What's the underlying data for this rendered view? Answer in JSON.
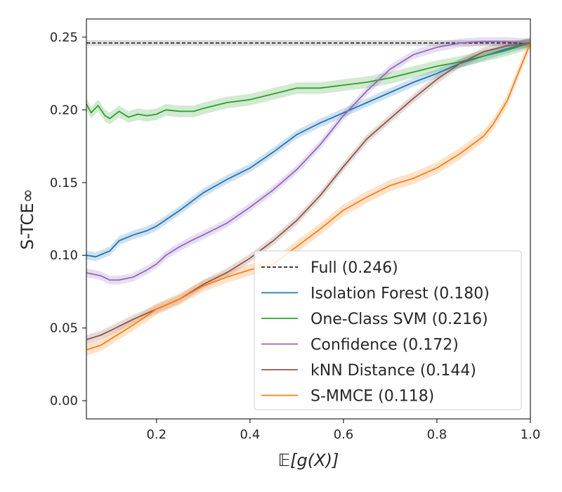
{
  "chart_data": {
    "type": "line",
    "xlabel": "𝔼[g(X)]",
    "ylabel": "S-TCE∞",
    "xlim": [
      0.05,
      1.0
    ],
    "ylim": [
      -0.0125,
      0.2625
    ],
    "xticks": [
      0.2,
      0.4,
      0.6,
      0.8,
      1.0
    ],
    "xtick_labels": [
      "0.2",
      "0.4",
      "0.6",
      "0.8",
      "1.0"
    ],
    "yticks": [
      0.0,
      0.05,
      0.1,
      0.15,
      0.2,
      0.25
    ],
    "ytick_labels": [
      "0.00",
      "0.05",
      "0.10",
      "0.15",
      "0.20",
      "0.25"
    ],
    "grid": false,
    "legend_position": "lower-right",
    "reference_line": {
      "name": "Full (0.246)",
      "value": 0.246,
      "band": [
        0.244,
        0.248
      ],
      "color": "#262626",
      "style": "dashed"
    },
    "series": [
      {
        "name": "Isolation Forest (0.180)",
        "color": "#1f77b4",
        "band_halfwidth": 0.003,
        "x": [
          0.05,
          0.07,
          0.1,
          0.12,
          0.15,
          0.18,
          0.2,
          0.25,
          0.3,
          0.35,
          0.4,
          0.45,
          0.5,
          0.55,
          0.6,
          0.65,
          0.7,
          0.75,
          0.8,
          0.85,
          0.9,
          0.95,
          1.0
        ],
        "values": [
          0.1,
          0.099,
          0.103,
          0.11,
          0.114,
          0.117,
          0.12,
          0.131,
          0.143,
          0.152,
          0.16,
          0.171,
          0.183,
          0.191,
          0.198,
          0.205,
          0.212,
          0.219,
          0.225,
          0.232,
          0.237,
          0.242,
          0.246
        ]
      },
      {
        "name": "One-Class SVM (0.216)",
        "color": "#2ca02c",
        "band_halfwidth": 0.004,
        "x": [
          0.05,
          0.06,
          0.075,
          0.09,
          0.1,
          0.12,
          0.14,
          0.16,
          0.18,
          0.2,
          0.22,
          0.25,
          0.28,
          0.3,
          0.35,
          0.4,
          0.45,
          0.5,
          0.55,
          0.6,
          0.65,
          0.7,
          0.75,
          0.8,
          0.85,
          0.9,
          0.95,
          1.0
        ],
        "values": [
          0.204,
          0.198,
          0.203,
          0.196,
          0.194,
          0.199,
          0.195,
          0.197,
          0.196,
          0.197,
          0.2,
          0.199,
          0.199,
          0.201,
          0.205,
          0.207,
          0.211,
          0.215,
          0.215,
          0.217,
          0.219,
          0.222,
          0.226,
          0.23,
          0.233,
          0.237,
          0.241,
          0.246
        ]
      },
      {
        "name": "Confidence (0.172)",
        "color": "#9467bd",
        "band_halfwidth": 0.003,
        "x": [
          0.05,
          0.08,
          0.1,
          0.12,
          0.15,
          0.18,
          0.2,
          0.22,
          0.25,
          0.28,
          0.3,
          0.35,
          0.4,
          0.45,
          0.5,
          0.55,
          0.6,
          0.65,
          0.7,
          0.75,
          0.8,
          0.85,
          0.9,
          0.95,
          1.0
        ],
        "values": [
          0.088,
          0.086,
          0.083,
          0.083,
          0.085,
          0.09,
          0.094,
          0.1,
          0.106,
          0.111,
          0.114,
          0.122,
          0.133,
          0.145,
          0.159,
          0.176,
          0.196,
          0.213,
          0.228,
          0.238,
          0.243,
          0.246,
          0.247,
          0.247,
          0.246
        ]
      },
      {
        "name": "kNN Distance (0.144)",
        "color": "#8c564b",
        "band_halfwidth": 0.003,
        "x": [
          0.05,
          0.08,
          0.1,
          0.15,
          0.2,
          0.25,
          0.3,
          0.35,
          0.4,
          0.45,
          0.5,
          0.55,
          0.6,
          0.65,
          0.7,
          0.75,
          0.8,
          0.85,
          0.9,
          0.95,
          1.0
        ],
        "values": [
          0.042,
          0.045,
          0.048,
          0.056,
          0.063,
          0.07,
          0.08,
          0.088,
          0.098,
          0.11,
          0.124,
          0.141,
          0.161,
          0.18,
          0.194,
          0.208,
          0.221,
          0.232,
          0.24,
          0.244,
          0.246
        ]
      },
      {
        "name": "S-MMCE (0.118)",
        "color": "#ff7f0e",
        "band_halfwidth": 0.004,
        "x": [
          0.05,
          0.08,
          0.1,
          0.15,
          0.2,
          0.25,
          0.3,
          0.35,
          0.4,
          0.45,
          0.5,
          0.55,
          0.6,
          0.65,
          0.7,
          0.75,
          0.8,
          0.85,
          0.9,
          0.92,
          0.95,
          0.98,
          1.0
        ],
        "values": [
          0.035,
          0.038,
          0.042,
          0.052,
          0.063,
          0.07,
          0.079,
          0.085,
          0.09,
          0.094,
          0.106,
          0.118,
          0.131,
          0.14,
          0.148,
          0.153,
          0.16,
          0.17,
          0.182,
          0.19,
          0.206,
          0.23,
          0.246
        ]
      }
    ]
  }
}
